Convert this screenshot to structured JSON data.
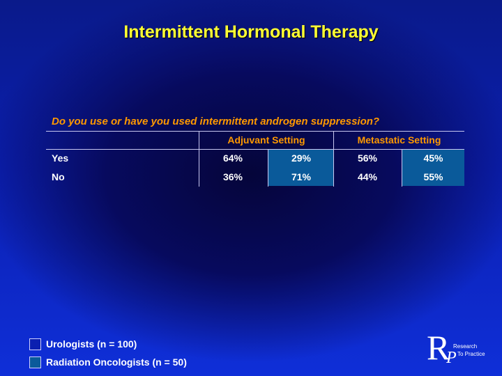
{
  "slide": {
    "title": "Intermittent Hormonal Therapy",
    "question": "Do you use or have you used intermittent androgen suppression?"
  },
  "table": {
    "headers": [
      "Adjuvant Setting",
      "Metastatic Setting"
    ],
    "rows": [
      {
        "label": "Yes",
        "values": [
          "64%",
          "29%",
          "56%",
          "45%"
        ]
      },
      {
        "label": "No",
        "values": [
          "36%",
          "71%",
          "44%",
          "55%"
        ]
      }
    ]
  },
  "legend": {
    "items": [
      {
        "label": "Urologists  (n = 100)",
        "color": "#0b1fb0"
      },
      {
        "label": "Radiation Oncologists  (n = 50)",
        "color": "#0a5a9a"
      }
    ]
  },
  "logo": {
    "letters": "RP",
    "line1": "Research",
    "line2": "To Practice"
  },
  "colors": {
    "title": "#ffff33",
    "header": "#ff9900",
    "radonc_fill": "#0a5a9a"
  }
}
